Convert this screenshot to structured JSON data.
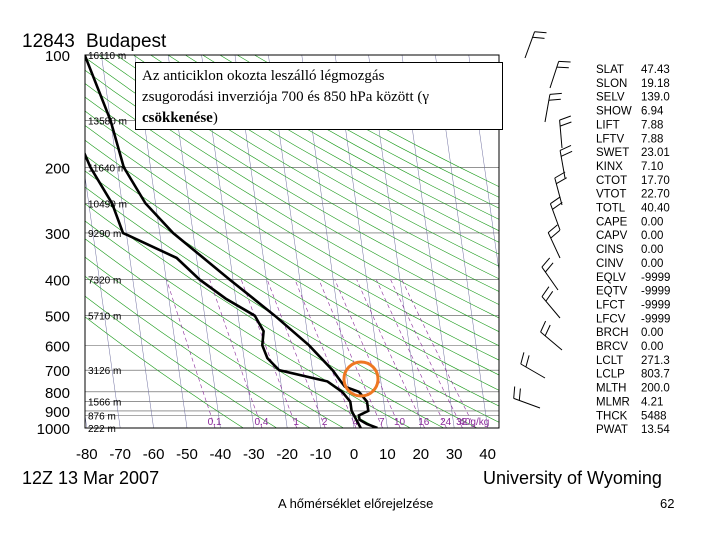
{
  "chart_data": {
    "type": "line",
    "station": "12843",
    "location": "Budapest",
    "date": "12Z 13 Mar 2007",
    "source": "University of Wyoming",
    "pressure_axis": {
      "unit": "hPa",
      "ticks": [
        100,
        200,
        300,
        400,
        500,
        600,
        700,
        800,
        900,
        1000
      ],
      "labels": [
        "100",
        "200",
        "300",
        "400",
        "500",
        "600",
        "700",
        "800",
        "900",
        "1000"
      ],
      "range": [
        100,
        1000
      ]
    },
    "temperature_axis": {
      "unit": "°C",
      "ticks": [
        -80,
        -70,
        -60,
        -50,
        -40,
        -30,
        -20,
        -10,
        0,
        10,
        20,
        30,
        40
      ],
      "labels": [
        "-80",
        "-70",
        "-60",
        "-50",
        "-40",
        "-30",
        "-20",
        "-10",
        "0",
        "10",
        "20",
        "30",
        "40"
      ],
      "range": [
        -80,
        40
      ]
    },
    "height_labels": [
      {
        "p": 100,
        "text": "16110 m"
      },
      {
        "p": 150,
        "text": "13580 m"
      },
      {
        "p": 200,
        "text": "11640 m"
      },
      {
        "p": 250,
        "text": "10490 m"
      },
      {
        "p": 300,
        "text": "9290 m"
      },
      {
        "p": 400,
        "text": "7320 m"
      },
      {
        "p": 500,
        "text": "5710 m"
      },
      {
        "p": 700,
        "text": "3126 m"
      },
      {
        "p": 850,
        "text": "1566 m"
      },
      {
        "p": 925,
        "text": "876 m"
      },
      {
        "p": 1000,
        "text": "222 m"
      }
    ],
    "mixing_ratio_labels": [
      "0.1",
      "0.4",
      "1",
      "2",
      "4",
      "7",
      "10",
      "16",
      "24",
      "32",
      "40g/kg"
    ],
    "series": [
      {
        "name": "Temperature",
        "points": [
          {
            "p": 1000,
            "t": 7
          },
          {
            "p": 975,
            "t": 4
          },
          {
            "p": 950,
            "t": 2
          },
          {
            "p": 925,
            "t": 2
          },
          {
            "p": 900,
            "t": 5
          },
          {
            "p": 850,
            "t": 5
          },
          {
            "p": 800,
            "t": 3
          },
          {
            "p": 775,
            "t": -1
          },
          {
            "p": 750,
            "t": -2
          },
          {
            "p": 700,
            "t": -4
          },
          {
            "p": 600,
            "t": -10
          },
          {
            "p": 500,
            "t": -19
          },
          {
            "p": 400,
            "t": -31
          },
          {
            "p": 300,
            "t": -46
          },
          {
            "p": 250,
            "t": -53
          },
          {
            "p": 200,
            "t": -58
          },
          {
            "p": 150,
            "t": -60
          },
          {
            "p": 100,
            "t": -65
          }
        ]
      },
      {
        "name": "Dewpoint",
        "points": [
          {
            "p": 1000,
            "t": 2
          },
          {
            "p": 900,
            "t": 0
          },
          {
            "p": 850,
            "t": 0
          },
          {
            "p": 800,
            "t": -2
          },
          {
            "p": 750,
            "t": -6
          },
          {
            "p": 700,
            "t": -20
          },
          {
            "p": 650,
            "t": -23
          },
          {
            "p": 600,
            "t": -24
          },
          {
            "p": 550,
            "t": -23
          },
          {
            "p": 500,
            "t": -25
          },
          {
            "p": 450,
            "t": -33
          },
          {
            "p": 400,
            "t": -40
          },
          {
            "p": 350,
            "t": -46
          },
          {
            "p": 300,
            "t": -61
          },
          {
            "p": 250,
            "t": -63
          },
          {
            "p": 200,
            "t": -68
          },
          {
            "p": 150,
            "t": -72
          },
          {
            "p": 100,
            "t": -80
          }
        ]
      }
    ],
    "indices": [
      {
        "name": "SLAT",
        "value": "47.43"
      },
      {
        "name": "SLON",
        "value": "19.18"
      },
      {
        "name": "SELV",
        "value": "139.0"
      },
      {
        "name": "SHOW",
        "value": "6.94"
      },
      {
        "name": "LIFT",
        "value": "7.88"
      },
      {
        "name": "LFTV",
        "value": "7.88"
      },
      {
        "name": "SWET",
        "value": "23.01"
      },
      {
        "name": "KINX",
        "value": "7.10"
      },
      {
        "name": "CTOT",
        "value": "17.70"
      },
      {
        "name": "VTOT",
        "value": "22.70"
      },
      {
        "name": "TOTL",
        "value": "40.40"
      },
      {
        "name": "CAPE",
        "value": "0.00"
      },
      {
        "name": "CAPV",
        "value": "0.00"
      },
      {
        "name": "CINS",
        "value": "0.00"
      },
      {
        "name": "CINV",
        "value": "0.00"
      },
      {
        "name": "EQLV",
        "value": "-9999"
      },
      {
        "name": "EQTV",
        "value": "-9999"
      },
      {
        "name": "LFCT",
        "value": "-9999"
      },
      {
        "name": "LFCV",
        "value": "-9999"
      },
      {
        "name": "BRCH",
        "value": "0.00"
      },
      {
        "name": "BRCV",
        "value": "0.00"
      },
      {
        "name": "LCLT",
        "value": "271.3"
      },
      {
        "name": "LCLP",
        "value": "803.7"
      },
      {
        "name": "MLTH",
        "value": "200.0"
      },
      {
        "name": "MLMR",
        "value": "4.21"
      },
      {
        "name": "THCK",
        "value": "5488"
      },
      {
        "name": "PWAT",
        "value": "13.54"
      }
    ],
    "annotation": {
      "line1": "Az anticiklon okozta leszálló légmozgás",
      "line2_plain": "zsugorodási inverziója 700 és 850 hPa között (γ",
      "line3_bold": "csökkenése",
      "line3_tail": ")",
      "highlight_pressure_range": [
        780,
        830
      ],
      "highlight_color": "#ee7722"
    },
    "colors": {
      "dry_adiabat": "#1a9a1a",
      "mixing_ratio": "#8a2a9a",
      "isotherm": "#7070a0",
      "profile": "#000000"
    }
  },
  "footer": {
    "title": "A hőmérséklet előrejelzése",
    "page_number": "62"
  }
}
